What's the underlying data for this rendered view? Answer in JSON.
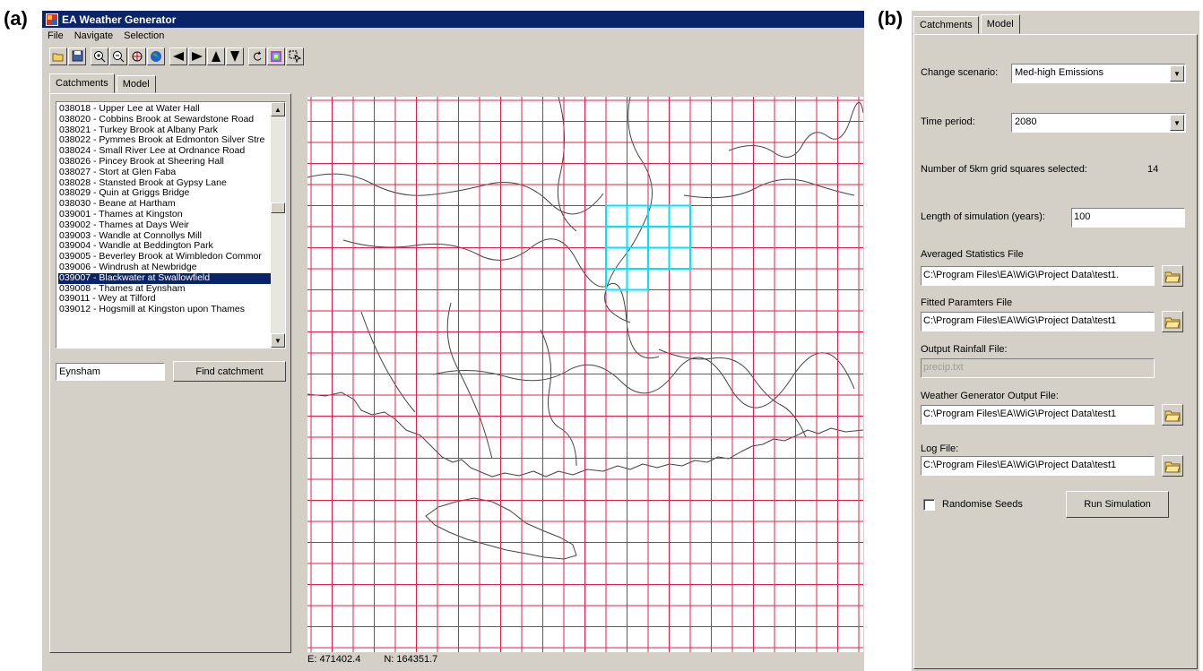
{
  "labels": {
    "a": "(a)",
    "b": "(b)"
  },
  "window": {
    "title": "EA Weather Generator",
    "menu": [
      "File",
      "Navigate",
      "Selection"
    ],
    "toolbar_icons": [
      "open-folder-icon",
      "save-icon",
      "zoom-in-icon",
      "zoom-out-icon",
      "pan-icon",
      "globe-icon",
      "pan-left-icon",
      "pan-right-icon",
      "pan-up-icon",
      "pan-down-icon",
      "refresh-icon",
      "layers-icon",
      "select-pointer-icon"
    ],
    "tabs": [
      "Catchments",
      "Model"
    ],
    "catchments": [
      "038018 - Upper Lee at Water Hall",
      "038020 - Cobbins Brook at Sewardstone Road",
      "038021 - Turkey Brook at Albany Park",
      "038022 - Pymmes Brook at Edmonton Silver Stre",
      "038024 - Small River Lee at Ordnance Road",
      "038026 - Pincey Brook at Sheering Hall",
      "038027 - Stort at Glen Faba",
      "038028 - Stansted Brook at Gypsy Lane",
      "038029 - Quin at Griggs Bridge",
      "038030 - Beane at Hartham",
      "039001 - Thames at Kingston",
      "039002 - Thames at Days Weir",
      "039003 - Wandle at Connollys Mill",
      "039004 - Wandle at Beddington Park",
      "039005 - Beverley Brook at Wimbledon Commor",
      "039006 - Windrush at Newbridge",
      "039007 - Blackwater at Swallowfield",
      "039008 - Thames at Eynsham",
      "039011 - Wey at Tilford",
      "039012 - Hogsmill at Kingston upon Thames"
    ],
    "selected_index": 16,
    "search_value": "Eynsham",
    "find_button": "Find catchment",
    "status": {
      "easting": "E: 471402.4",
      "northing": "N: 164351.7"
    },
    "grid_color": "#e0204a",
    "selection_color": "#00e5ff"
  },
  "model_panel": {
    "tabs": [
      "Catchments",
      "Model"
    ],
    "change_scenario_label": "Change scenario:",
    "change_scenario_value": "Med-high Emissions",
    "time_period_label": "Time period:",
    "time_period_value": "2080",
    "grid_squares_label": "Number of 5km grid squares selected:",
    "grid_squares_value": "14",
    "length_label": "Length of simulation (years):",
    "length_value": "100",
    "averaged_stats_label": "Averaged Statistics File",
    "averaged_stats_value": "C:\\Program Files\\EA\\WiG\\Project Data\\test1.",
    "fitted_params_label": "Fitted Paramters File",
    "fitted_params_value": "C:\\Program Files\\EA\\WiG\\Project Data\\test1",
    "output_rainfall_label": "Output Rainfall File:",
    "output_rainfall_value": "precip.txt",
    "wg_output_label": "Weather Generator Output File:",
    "wg_output_value": "C:\\Program Files\\EA\\WiG\\Project Data\\test1",
    "log_label": "Log File:",
    "log_value": "C:\\Program Files\\EA\\WiG\\Project Data\\test1",
    "randomise_label": "Randomise Seeds",
    "run_button": "Run Simulation"
  }
}
